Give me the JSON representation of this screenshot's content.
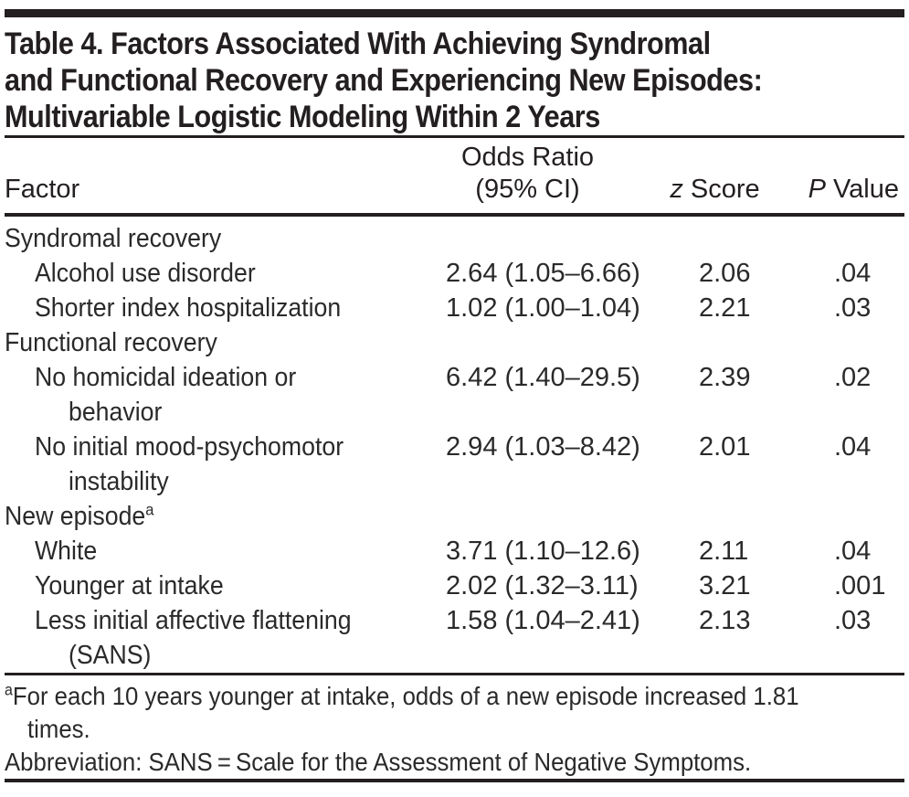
{
  "page": {
    "background": "#ffffff",
    "text_color": "#2a2a2a",
    "rule_color": "#231f20"
  },
  "table": {
    "title_lines": [
      "Table 4. Factors Associated With Achieving Syndromal",
      "and Functional Recovery and Experiencing New Episodes:",
      "Multivariable Logistic Modeling Within 2 Years"
    ],
    "header": {
      "factor": "Factor",
      "odds_ratio_line1": "Odds Ratio",
      "odds_ratio_line2": "(95% CI)",
      "z_italic": "z",
      "z_rest": " Score",
      "p_italic": "P",
      "p_rest": " Value"
    },
    "rows": [
      {
        "type": "group",
        "factor": "Syndromal recovery"
      },
      {
        "type": "item",
        "factor": "Alcohol use disorder",
        "or": "2.64 (1.05–6.66)",
        "z": "2.06",
        "p": ".04"
      },
      {
        "type": "item",
        "factor": "Shorter index hospitalization",
        "or": "1.02 (1.00–1.04)",
        "z": "2.21",
        "p": ".03"
      },
      {
        "type": "group",
        "factor": "Functional recovery"
      },
      {
        "type": "item",
        "factor": "No homicidal ideation or",
        "factor2": "behavior",
        "or": "6.42 (1.40–29.5)",
        "z": "2.39",
        "p": ".02"
      },
      {
        "type": "item",
        "factor": "No initial mood-psychomotor",
        "factor2": "instability",
        "or": "2.94 (1.03–8.42)",
        "z": "2.01",
        "p": ".04"
      },
      {
        "type": "group",
        "factor": "New episode",
        "sup": "a"
      },
      {
        "type": "item",
        "factor": "White",
        "or": "3.71 (1.10–12.6)",
        "z": "2.11",
        "p": ".04"
      },
      {
        "type": "item",
        "factor": "Younger at intake",
        "or": "2.02 (1.32–3.11)",
        "z": "3.21",
        "p": ".001"
      },
      {
        "type": "item",
        "factor": "Less initial affective flattening",
        "factor2": "(SANS)",
        "or": "1.58 (1.04–2.41)",
        "z": "2.13",
        "p": ".03"
      }
    ],
    "footnotes": {
      "note_a_sup": "a",
      "note_a_line1": "For each 10 years younger at intake, odds of a new episode increased 1.81",
      "note_a_line2": "times.",
      "abbreviation": "Abbreviation: SANS = Scale for the Assessment of Negative Symptoms."
    }
  }
}
